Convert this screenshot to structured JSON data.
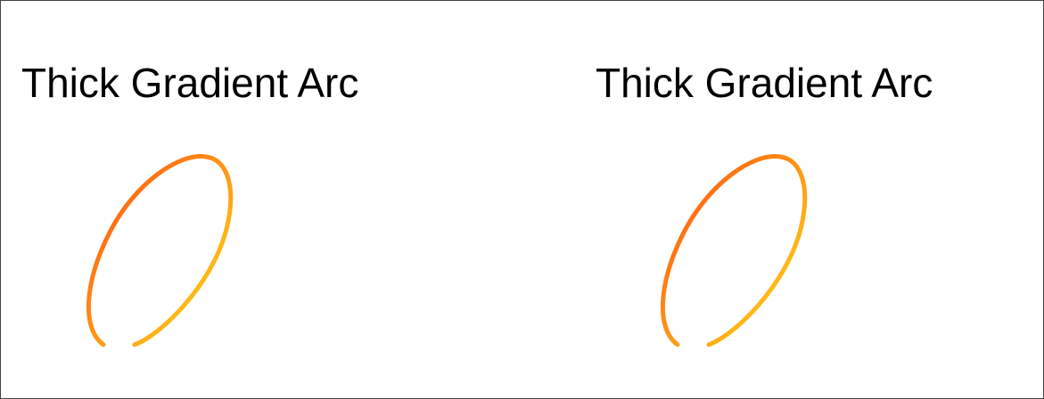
{
  "panels": [
    {
      "title": "Thick Gradient Arc"
    },
    {
      "title": "Thick Gradient Arc"
    }
  ],
  "colors": {
    "gradient_start": "#ff4a12",
    "gradient_end": "#ffe01a",
    "border": "#444444",
    "background": "#ffffff",
    "text": "#000000"
  }
}
